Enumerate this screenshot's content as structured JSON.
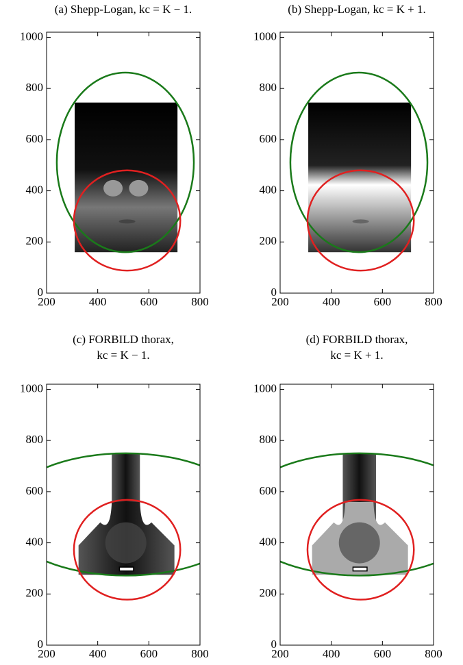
{
  "chart_data": [
    {
      "type": "image",
      "title": [
        "(a) Shepp-Logan, kc = K − 1."
      ],
      "xlim": [
        200,
        800
      ],
      "ylim": [
        0,
        1020
      ],
      "xticks": [
        200,
        400,
        600,
        800
      ],
      "yticks": [
        0,
        200,
        400,
        600,
        800,
        1000
      ],
      "ellipses": [
        {
          "cx": 508,
          "cy": 511,
          "rx": 268,
          "ry": 351,
          "color": "#1a7a1a"
        },
        {
          "cx": 515,
          "cy": 284,
          "rx": 208,
          "ry": 196,
          "color": "#e02020"
        }
      ]
    },
    {
      "type": "image",
      "title": [
        "(b) Shepp-Logan, kc = K + 1."
      ],
      "xlim": [
        200,
        800
      ],
      "ylim": [
        0,
        1020
      ],
      "xticks": [
        200,
        400,
        600,
        800
      ],
      "yticks": [
        0,
        200,
        400,
        600,
        800,
        1000
      ],
      "ellipses": [
        {
          "cx": 508,
          "cy": 511,
          "rx": 268,
          "ry": 351,
          "color": "#1a7a1a"
        },
        {
          "cx": 515,
          "cy": 284,
          "rx": 208,
          "ry": 196,
          "color": "#e02020"
        }
      ]
    },
    {
      "type": "image",
      "title": [
        "(c) FORBILD thorax,",
        "kc = K − 1."
      ],
      "xlim": [
        200,
        800
      ],
      "ylim": [
        0,
        1020
      ],
      "xticks": [
        200,
        400,
        600,
        800
      ],
      "yticks": [
        0,
        200,
        400,
        600,
        800,
        1000
      ],
      "ellipses": [
        {
          "cx": 510,
          "cy": 511,
          "rx": 486,
          "ry": 239,
          "color": "#1a7a1a"
        },
        {
          "cx": 515,
          "cy": 373,
          "rx": 208,
          "ry": 195,
          "color": "#e02020"
        }
      ]
    },
    {
      "type": "image",
      "title": [
        "(d) FORBILD thorax,",
        "kc = K + 1."
      ],
      "xlim": [
        200,
        800
      ],
      "ylim": [
        0,
        1020
      ],
      "xticks": [
        200,
        400,
        600,
        800
      ],
      "yticks": [
        0,
        200,
        400,
        600,
        800,
        1000
      ],
      "ellipses": [
        {
          "cx": 510,
          "cy": 511,
          "rx": 486,
          "ry": 239,
          "color": "#1a7a1a"
        },
        {
          "cx": 515,
          "cy": 373,
          "rx": 208,
          "ry": 195,
          "color": "#e02020"
        }
      ]
    }
  ]
}
